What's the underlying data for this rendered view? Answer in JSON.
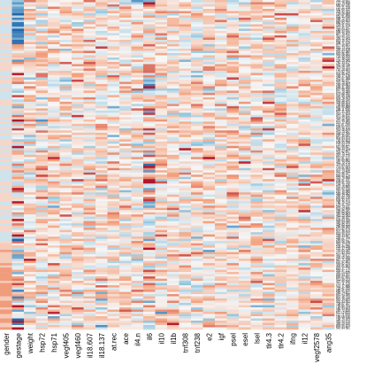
{
  "chart_data": {
    "type": "heatmap",
    "title": "",
    "xlabel": "",
    "ylabel": "",
    "columns": [
      "gender",
      "gestage",
      "weight",
      "hsp72",
      "hsp71",
      "vegf405",
      "vegf460",
      "il18.607",
      "il18.137",
      "at.rec",
      "ace",
      "il4.n",
      "il6",
      "il10",
      "il1b",
      "tnf308",
      "tnf238",
      "e2",
      "igf",
      "psel",
      "esel",
      "lsel",
      "tlr4.3",
      "tlr4.2",
      "ifng",
      "il12",
      "vegf2578",
      "ang35"
    ],
    "rows": 149,
    "row_labels_legible": false,
    "colormap": {
      "low": "#2166ac",
      "mid": "#f7f7f7",
      "high": "#b2182b"
    },
    "value_range": [
      -3,
      3
    ],
    "note_values": "cell values not legible; color intensities only",
    "grid": false
  }
}
